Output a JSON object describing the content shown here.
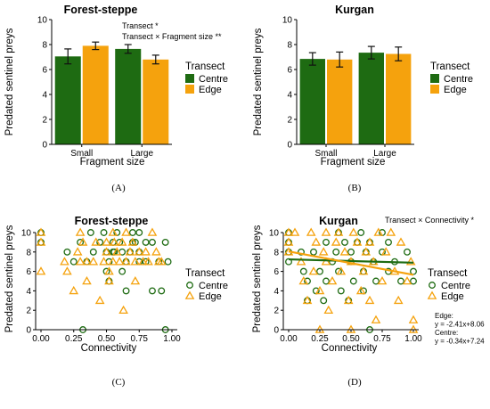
{
  "colors": {
    "centre": "#1e6b12",
    "edge": "#f5a20d",
    "errorbar": "#111111"
  },
  "chart_data": [
    {
      "panel": "(A)",
      "type": "bar",
      "title": "Forest-steppe",
      "xlabel": "Fragment size",
      "ylabel": "Predated sentinel preys",
      "ylim": [
        0,
        10
      ],
      "yticks": [
        0,
        2,
        4,
        6,
        8,
        10
      ],
      "categories": [
        "Small",
        "Large"
      ],
      "series": [
        {
          "name": "Centre",
          "values": [
            7.05,
            7.65
          ],
          "errors": [
            0.6,
            0.35
          ]
        },
        {
          "name": "Edge",
          "values": [
            7.9,
            6.8
          ],
          "errors": [
            0.3,
            0.35
          ]
        }
      ],
      "legend": {
        "title": "Transect",
        "placement": "right"
      },
      "annotations": [
        "Transect *",
        "Transect × Fragment size **"
      ]
    },
    {
      "panel": "(B)",
      "type": "bar",
      "title": "Kurgan",
      "xlabel": "Fragment size",
      "ylabel": "Predated sentinel preys",
      "ylim": [
        0,
        10
      ],
      "yticks": [
        0,
        2,
        4,
        6,
        8,
        10
      ],
      "categories": [
        "Small",
        "Large"
      ],
      "series": [
        {
          "name": "Centre",
          "values": [
            6.85,
            7.35
          ],
          "errors": [
            0.5,
            0.5
          ]
        },
        {
          "name": "Edge",
          "values": [
            6.8,
            7.25
          ],
          "errors": [
            0.6,
            0.55
          ]
        }
      ],
      "legend": {
        "title": "Transect",
        "placement": "right"
      },
      "annotations": []
    },
    {
      "panel": "(C)",
      "type": "scatter",
      "title": "Forest-steppe",
      "xlabel": "Connectivity",
      "ylabel": "Predated sentinel preys",
      "xlim": [
        0,
        1
      ],
      "ylim": [
        0,
        10
      ],
      "xticks": [
        "0.00",
        "0.25",
        "0.50",
        "0.75",
        "1.00"
      ],
      "yticks": [
        0,
        2,
        4,
        6,
        8,
        10
      ],
      "series": [
        {
          "name": "Centre",
          "marker": "circle",
          "points": [
            [
              0,
              9
            ],
            [
              0,
              10
            ],
            [
              0.2,
              8
            ],
            [
              0.25,
              7
            ],
            [
              0.3,
              9
            ],
            [
              0.32,
              0
            ],
            [
              0.35,
              7
            ],
            [
              0.38,
              10
            ],
            [
              0.4,
              8
            ],
            [
              0.45,
              9
            ],
            [
              0.48,
              10
            ],
            [
              0.5,
              8
            ],
            [
              0.5,
              6
            ],
            [
              0.52,
              5
            ],
            [
              0.52,
              7
            ],
            [
              0.55,
              9
            ],
            [
              0.55,
              8
            ],
            [
              0.56,
              8
            ],
            [
              0.58,
              10
            ],
            [
              0.6,
              9
            ],
            [
              0.62,
              8
            ],
            [
              0.62,
              6
            ],
            [
              0.65,
              4
            ],
            [
              0.65,
              7
            ],
            [
              0.68,
              8
            ],
            [
              0.7,
              9
            ],
            [
              0.7,
              10
            ],
            [
              0.72,
              9
            ],
            [
              0.75,
              10
            ],
            [
              0.75,
              8
            ],
            [
              0.75,
              7
            ],
            [
              0.8,
              9
            ],
            [
              0.8,
              7
            ],
            [
              0.85,
              4
            ],
            [
              0.85,
              9
            ],
            [
              0.9,
              7
            ],
            [
              0.92,
              4
            ],
            [
              0.95,
              0
            ],
            [
              0.95,
              9
            ],
            [
              0.97,
              7
            ]
          ]
        },
        {
          "name": "Edge",
          "marker": "triangle",
          "points": [
            [
              0,
              10
            ],
            [
              0,
              9
            ],
            [
              0,
              6
            ],
            [
              0.18,
              7
            ],
            [
              0.2,
              6
            ],
            [
              0.25,
              4
            ],
            [
              0.28,
              8
            ],
            [
              0.3,
              10
            ],
            [
              0.3,
              7
            ],
            [
              0.32,
              9
            ],
            [
              0.35,
              7
            ],
            [
              0.35,
              5
            ],
            [
              0.4,
              7
            ],
            [
              0.42,
              9
            ],
            [
              0.45,
              3
            ],
            [
              0.48,
              7
            ],
            [
              0.5,
              9
            ],
            [
              0.5,
              8
            ],
            [
              0.52,
              6
            ],
            [
              0.52,
              5
            ],
            [
              0.55,
              10
            ],
            [
              0.55,
              7
            ],
            [
              0.56,
              9
            ],
            [
              0.58,
              8
            ],
            [
              0.6,
              7
            ],
            [
              0.62,
              9
            ],
            [
              0.63,
              2
            ],
            [
              0.65,
              10
            ],
            [
              0.65,
              7
            ],
            [
              0.68,
              8
            ],
            [
              0.7,
              9
            ],
            [
              0.72,
              5
            ],
            [
              0.72,
              7
            ],
            [
              0.75,
              8
            ],
            [
              0.78,
              7
            ],
            [
              0.8,
              8
            ],
            [
              0.82,
              7
            ],
            [
              0.85,
              10
            ],
            [
              0.88,
              8
            ],
            [
              0.9,
              7
            ],
            [
              0.92,
              7
            ]
          ]
        }
      ],
      "legend": {
        "title": "Transect",
        "placement": "right"
      },
      "annotations": []
    },
    {
      "panel": "(D)",
      "type": "scatter",
      "title": "Kurgan",
      "xlabel": "Connectivity",
      "ylabel": "Predated sentinel preys",
      "xlim": [
        0,
        1
      ],
      "ylim": [
        0,
        10
      ],
      "xticks": [
        "0.00",
        "0.25",
        "0.50",
        "0.75",
        "1.00"
      ],
      "yticks": [
        0,
        2,
        4,
        6,
        8,
        10
      ],
      "series": [
        {
          "name": "Centre",
          "marker": "circle",
          "points": [
            [
              0,
              10
            ],
            [
              0,
              9
            ],
            [
              0,
              8
            ],
            [
              0,
              7
            ],
            [
              0.1,
              8
            ],
            [
              0.12,
              6
            ],
            [
              0.15,
              3
            ],
            [
              0.15,
              5
            ],
            [
              0.2,
              8
            ],
            [
              0.22,
              4
            ],
            [
              0.25,
              6
            ],
            [
              0.28,
              3
            ],
            [
              0.3,
              9
            ],
            [
              0.3,
              5
            ],
            [
              0.35,
              7
            ],
            [
              0.38,
              8
            ],
            [
              0.4,
              10
            ],
            [
              0.4,
              6
            ],
            [
              0.42,
              4
            ],
            [
              0.45,
              9
            ],
            [
              0.48,
              3
            ],
            [
              0.5,
              8
            ],
            [
              0.5,
              7
            ],
            [
              0.52,
              5
            ],
            [
              0.55,
              9
            ],
            [
              0.58,
              10
            ],
            [
              0.6,
              6
            ],
            [
              0.6,
              4
            ],
            [
              0.62,
              8
            ],
            [
              0.65,
              9
            ],
            [
              0.65,
              0
            ],
            [
              0.68,
              7
            ],
            [
              0.7,
              5
            ],
            [
              0.75,
              10
            ],
            [
              0.75,
              8
            ],
            [
              0.8,
              6
            ],
            [
              0.8,
              9
            ],
            [
              0.85,
              7
            ],
            [
              0.9,
              5
            ],
            [
              0.95,
              8
            ],
            [
              1,
              6
            ],
            [
              1,
              5
            ]
          ]
        },
        {
          "name": "Edge",
          "marker": "triangle",
          "points": [
            [
              0,
              10
            ],
            [
              0,
              9
            ],
            [
              0,
              8
            ],
            [
              0.05,
              10
            ],
            [
              0.1,
              7
            ],
            [
              0.12,
              5
            ],
            [
              0.15,
              3
            ],
            [
              0.18,
              10
            ],
            [
              0.2,
              6
            ],
            [
              0.22,
              9
            ],
            [
              0.25,
              4
            ],
            [
              0.25,
              0
            ],
            [
              0.28,
              8
            ],
            [
              0.3,
              10
            ],
            [
              0.3,
              7
            ],
            [
              0.32,
              2
            ],
            [
              0.35,
              5
            ],
            [
              0.38,
              9
            ],
            [
              0.4,
              10
            ],
            [
              0.42,
              6
            ],
            [
              0.45,
              8
            ],
            [
              0.48,
              3
            ],
            [
              0.5,
              7
            ],
            [
              0.5,
              0
            ],
            [
              0.52,
              10
            ],
            [
              0.55,
              9
            ],
            [
              0.58,
              4
            ],
            [
              0.6,
              6
            ],
            [
              0.62,
              8
            ],
            [
              0.65,
              9
            ],
            [
              0.65,
              3
            ],
            [
              0.68,
              7
            ],
            [
              0.7,
              1
            ],
            [
              0.72,
              10
            ],
            [
              0.75,
              5
            ],
            [
              0.78,
              8
            ],
            [
              0.82,
              10
            ],
            [
              0.85,
              6
            ],
            [
              0.88,
              3
            ],
            [
              0.9,
              9
            ],
            [
              0.95,
              5
            ],
            [
              0.98,
              7
            ],
            [
              1,
              1
            ],
            [
              1,
              0
            ]
          ]
        }
      ],
      "fits": [
        {
          "series": "Centre",
          "slope": -0.34,
          "intercept": 7.24
        },
        {
          "series": "Edge",
          "slope": -2.41,
          "intercept": 8.06
        }
      ],
      "legend": {
        "title": "Transect",
        "placement": "right"
      },
      "annotations": [
        "Transect × Connectivity *"
      ],
      "equations": [
        "Edge:",
        "y = -2.41x+8.06",
        "Centre:",
        "y = -0.34x+7.24"
      ]
    }
  ]
}
